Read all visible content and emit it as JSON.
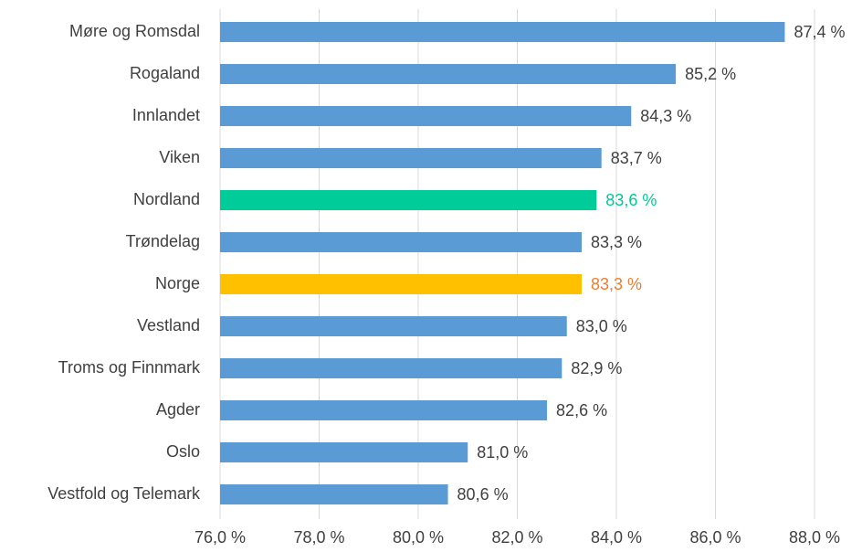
{
  "chart_data": {
    "type": "bar",
    "orientation": "horizontal",
    "categories": [
      "Møre og Romsdal",
      "Rogaland",
      "Innlandet",
      "Viken",
      "Nordland",
      "Trøndelag",
      "Norge",
      "Vestland",
      "Troms og Finnmark",
      "Agder",
      "Oslo",
      "Vestfold og Telemark"
    ],
    "values": [
      87.4,
      85.2,
      84.3,
      83.7,
      83.6,
      83.3,
      83.3,
      83.0,
      82.9,
      82.6,
      81.0,
      80.6
    ],
    "value_labels": [
      "87,4 %",
      "85,2 %",
      "84,3 %",
      "83,7 %",
      "83,6 %",
      "83,3 %",
      "83,3 %",
      "83,0 %",
      "82,9 %",
      "82,6 %",
      "81,0 %",
      "80,6 %"
    ],
    "colors": [
      "#5b9bd5",
      "#5b9bd5",
      "#5b9bd5",
      "#5b9bd5",
      "#00cc99",
      "#5b9bd5",
      "#ffc000",
      "#5b9bd5",
      "#5b9bd5",
      "#5b9bd5",
      "#5b9bd5",
      "#5b9bd5"
    ],
    "label_colors": [
      "#404040",
      "#404040",
      "#404040",
      "#404040",
      "#00c896",
      "#404040",
      "#ed7d31",
      "#404040",
      "#404040",
      "#404040",
      "#404040",
      "#404040"
    ],
    "xlim": [
      76,
      88
    ],
    "xticks": [
      {
        "value": 76,
        "label": "76,0 %"
      },
      {
        "value": 78,
        "label": "78,0 %"
      },
      {
        "value": 80,
        "label": "80,0 %"
      },
      {
        "value": 82,
        "label": "82,0 %"
      },
      {
        "value": 84,
        "label": "84,0 %"
      },
      {
        "value": 86,
        "label": "86,0 %"
      },
      {
        "value": 88,
        "label": "88,0 %"
      }
    ],
    "grid": true
  }
}
